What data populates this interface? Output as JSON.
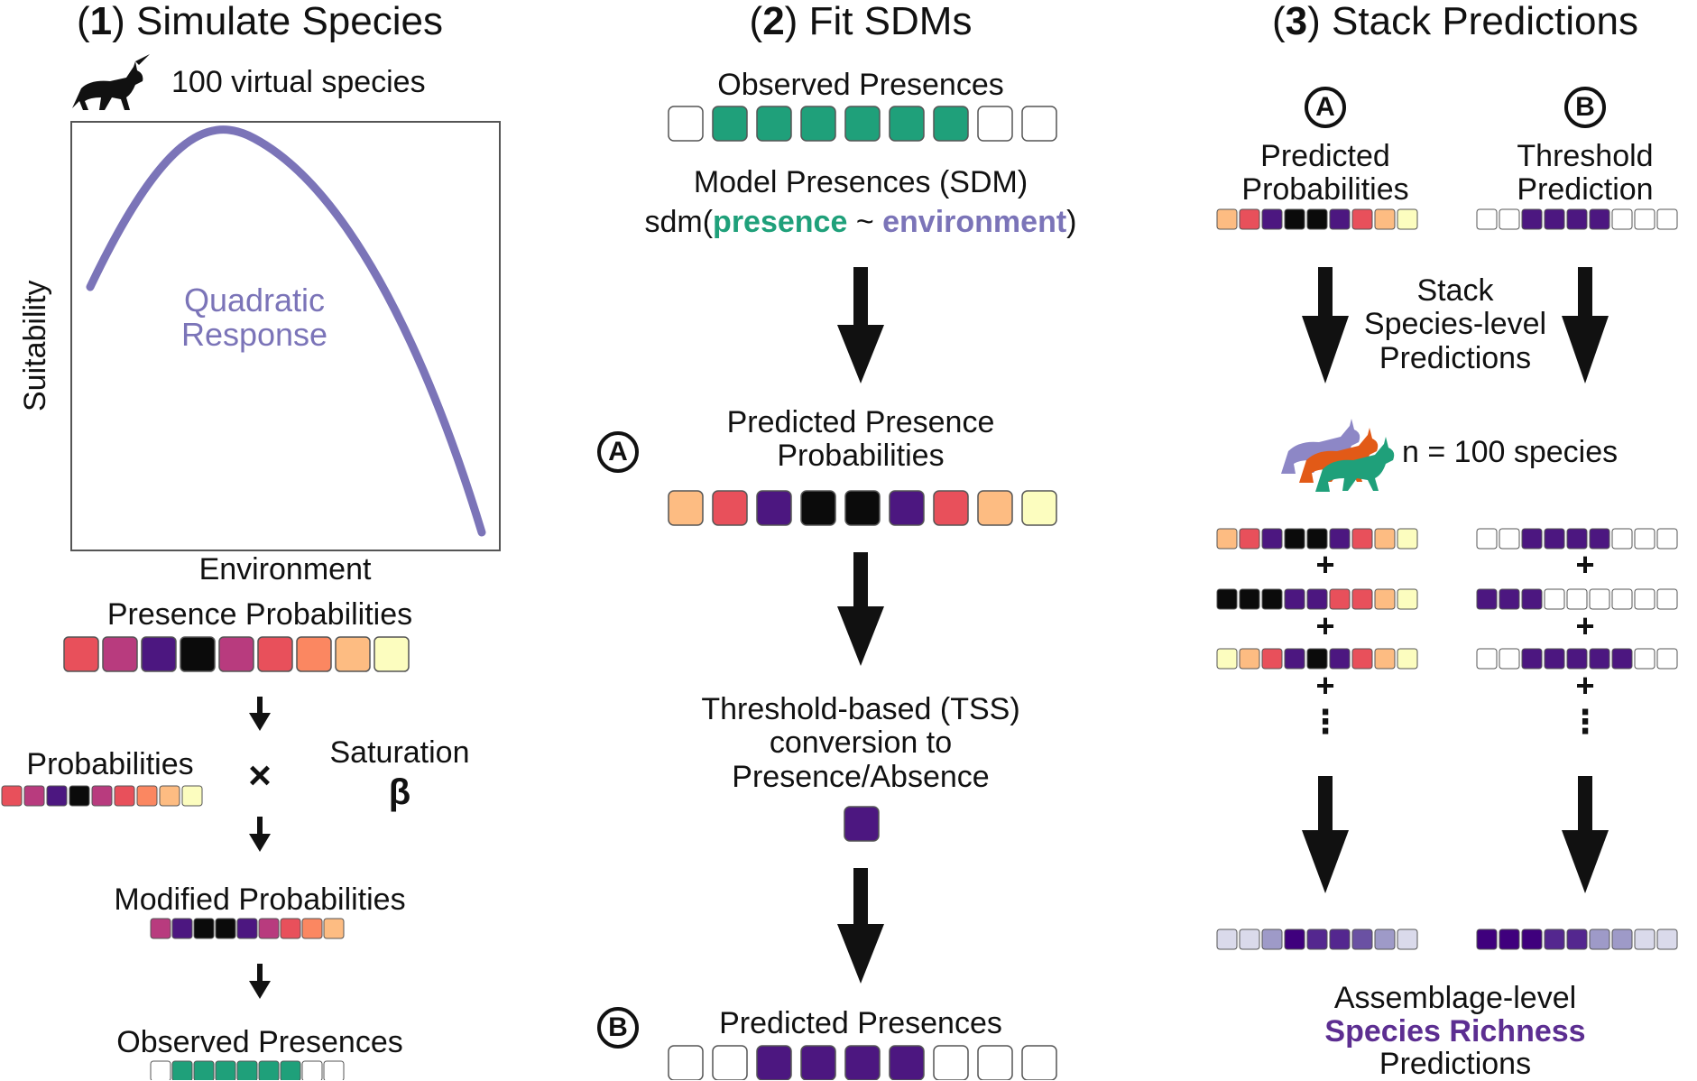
{
  "panels": {
    "p1": {
      "num": "1",
      "title": "Simulate Species"
    },
    "p2": {
      "num": "2",
      "title": "Fit SDMs"
    },
    "p3": {
      "num": "3",
      "title": "Stack Predictions"
    }
  },
  "left": {
    "virtual_species": "100 virtual species",
    "ylabel": "Suitability",
    "xlabel": "Environment",
    "curve_label_1": "Quadratic",
    "curve_label_2": "Response",
    "presence_probabilities": "Presence Probabilities",
    "probabilities": "Probabilities",
    "times": "×",
    "saturation": "Saturation",
    "beta": "β",
    "modified_probabilities": "Modified Probabilities",
    "observed_presences": "Observed Presences"
  },
  "middle": {
    "observed_presences": "Observed Presences",
    "model_presences": "Model Presences (SDM)",
    "sdm_prefix": "sdm(",
    "sdm_presence": "presence",
    "sdm_tilde": " ~ ",
    "sdm_environment": "environment",
    "sdm_suffix": ")",
    "marker_a": "A",
    "predicted_presence_prob_1": "Predicted Presence",
    "predicted_presence_prob_2": "Probabilities",
    "threshold_1": "Threshold-based (TSS)",
    "threshold_2": "conversion to",
    "threshold_3": "Presence/Absence",
    "marker_b": "B",
    "predicted_presences": "Predicted Presences"
  },
  "right": {
    "marker_a": "A",
    "marker_b": "B",
    "pred_prob_1": "Predicted",
    "pred_prob_2": "Probabilities",
    "thresh_pred_1": "Threshold",
    "thresh_pred_2": "Prediction",
    "stack_1": "Stack",
    "stack_2": "Species-level",
    "stack_3": "Predictions",
    "n_species": "n = 100 species",
    "plus": "+",
    "dots": "⋮",
    "assemblage_1": "Assemblage-level",
    "assemblage_2": "Species Richness",
    "assemblage_3": "Predictions"
  },
  "colors": {
    "green": "#1fa07a",
    "curve": "#7b74b8",
    "richness": "#5c2e91",
    "black": "#111111"
  },
  "strips": {
    "left_presence_prob": [
      "#e8505b",
      "#b83b7e",
      "#4c1780",
      "#0b0b0b",
      "#b83b7e",
      "#e8505b",
      "#fb8761",
      "#fdbc82",
      "#fcfdbf"
    ],
    "left_probabilities": [
      "#e8505b",
      "#b83b7e",
      "#4c1780",
      "#0b0b0b",
      "#b83b7e",
      "#e8505b",
      "#fb8761",
      "#fdbc82",
      "#fcfdbf"
    ],
    "left_modified": [
      "#b83b7e",
      "#4c1780",
      "#0b0b0b",
      "#0b0b0b",
      "#4c1780",
      "#b83b7e",
      "#e8505b",
      "#fb8761",
      "#fdbc82"
    ],
    "left_observed": [
      "#ffffff",
      "#1fa07a",
      "#1fa07a",
      "#1fa07a",
      "#1fa07a",
      "#1fa07a",
      "#1fa07a",
      "#ffffff",
      "#ffffff"
    ],
    "mid_observed": [
      "#ffffff",
      "#1fa07a",
      "#1fa07a",
      "#1fa07a",
      "#1fa07a",
      "#1fa07a",
      "#1fa07a",
      "#ffffff",
      "#ffffff"
    ],
    "mid_predicted_prob": [
      "#fdbc82",
      "#e8505b",
      "#4c1780",
      "#0b0b0b",
      "#0b0b0b",
      "#4c1780",
      "#e8505b",
      "#fdbc82",
      "#fcfdbf"
    ],
    "mid_predicted_presences": [
      "#ffffff",
      "#ffffff",
      "#4c1780",
      "#4c1780",
      "#4c1780",
      "#4c1780",
      "#ffffff",
      "#ffffff",
      "#ffffff"
    ],
    "right_a_top": [
      "#fdbc82",
      "#e8505b",
      "#4c1780",
      "#0b0b0b",
      "#0b0b0b",
      "#4c1780",
      "#e8505b",
      "#fdbc82",
      "#fcfdbf"
    ],
    "right_b_top": [
      "#ffffff",
      "#ffffff",
      "#4c1780",
      "#4c1780",
      "#4c1780",
      "#4c1780",
      "#ffffff",
      "#ffffff",
      "#ffffff"
    ],
    "right_a_1": [
      "#fdbc82",
      "#e8505b",
      "#4c1780",
      "#0b0b0b",
      "#0b0b0b",
      "#4c1780",
      "#e8505b",
      "#fdbc82",
      "#fcfdbf"
    ],
    "right_b_1": [
      "#ffffff",
      "#ffffff",
      "#4c1780",
      "#4c1780",
      "#4c1780",
      "#4c1780",
      "#ffffff",
      "#ffffff",
      "#ffffff"
    ],
    "right_a_2": [
      "#0b0b0b",
      "#0b0b0b",
      "#0b0b0b",
      "#4c1780",
      "#4c1780",
      "#e8505b",
      "#e8505b",
      "#fdbc82",
      "#fcfdbf"
    ],
    "right_b_2": [
      "#4c1780",
      "#4c1780",
      "#4c1780",
      "#ffffff",
      "#ffffff",
      "#ffffff",
      "#ffffff",
      "#ffffff",
      "#ffffff"
    ],
    "right_a_3": [
      "#fcfdbf",
      "#fdbc82",
      "#e8505b",
      "#4c1780",
      "#0b0b0b",
      "#4c1780",
      "#e8505b",
      "#fdbc82",
      "#fcfdbf"
    ],
    "right_b_3": [
      "#ffffff",
      "#ffffff",
      "#4c1780",
      "#4c1780",
      "#4c1780",
      "#4c1780",
      "#4c1780",
      "#ffffff",
      "#ffffff"
    ],
    "right_a_final": [
      "#dadaeb",
      "#dadaeb",
      "#9e9ac8",
      "#3f007d",
      "#54278f",
      "#54278f",
      "#6a51a3",
      "#9e9ac8",
      "#dadaeb"
    ],
    "right_b_final": [
      "#3f007d",
      "#3f007d",
      "#3f007d",
      "#54278f",
      "#54278f",
      "#9e9ac8",
      "#9e9ac8",
      "#dadaeb",
      "#dadaeb"
    ],
    "single_square": [
      "#4c1780"
    ]
  }
}
